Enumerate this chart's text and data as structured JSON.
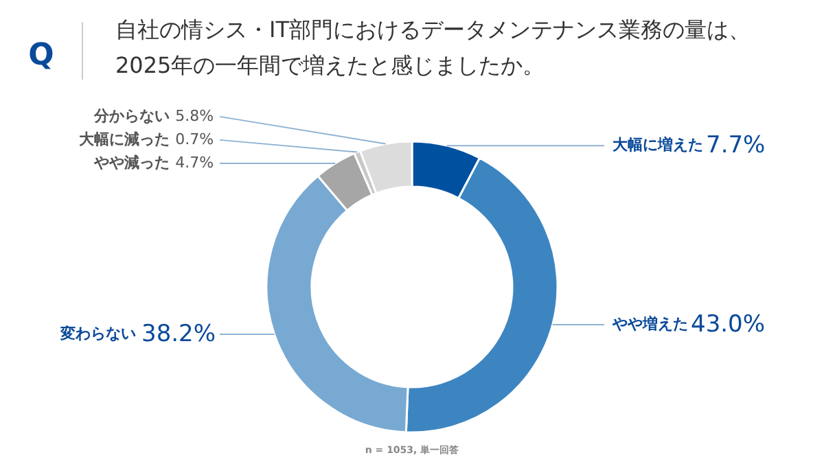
{
  "chart_data": {
    "type": "donut",
    "title": "自社の情シス・IT部門におけるデータメンテナンス業務の量は、\n2025年の一年間で増えたと感じましたか。",
    "categories": [
      "大幅に増えた",
      "やや増えた",
      "変わらない",
      "やや減った",
      "大幅に減った",
      "分からない"
    ],
    "values": [
      7.7,
      43.0,
      38.2,
      4.7,
      0.7,
      5.8
    ],
    "colors": [
      "#0050a0",
      "#3d85c0",
      "#78a9d2",
      "#a6a6a6",
      "#c8c8c8",
      "#dcdcdc"
    ],
    "value_labels": [
      "7.7%",
      "43.0%",
      "38.2%",
      "4.7%",
      "0.7%",
      "5.8%"
    ],
    "annotations": [
      "Q",
      "n = 1053, 単一回答"
    ]
  }
}
